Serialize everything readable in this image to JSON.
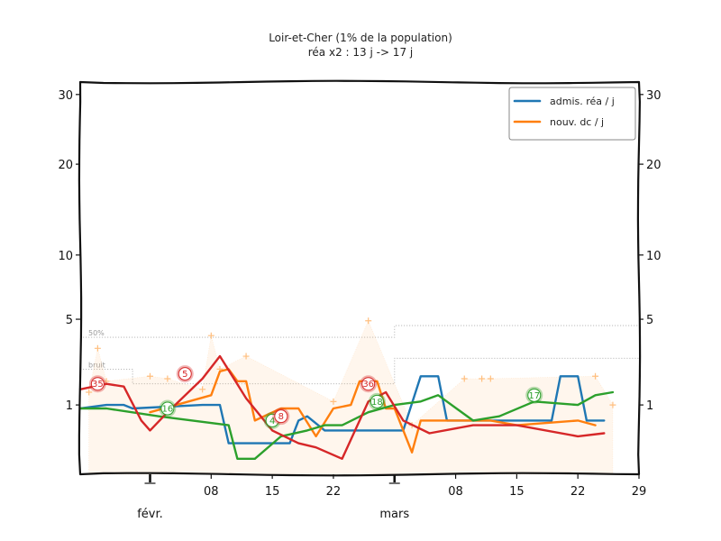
{
  "chart_data": {
    "type": "line",
    "title": "Loir-et-Cher (1% de la population)",
    "subtitle": "réa x2 : 13 j -> 17 j",
    "xlabel": "",
    "ylabel": "",
    "y_scale": "sqrt",
    "ylim": [
      0,
      32
    ],
    "xlim": [
      "2021-01-24",
      "2021-03-29"
    ],
    "y_ticks": [
      1,
      5,
      10,
      20,
      30
    ],
    "y_tick_labels": [
      "1",
      "5",
      "10",
      "20",
      "30"
    ],
    "x_ticks": [
      "2021-02-01",
      "2021-02-08",
      "2021-02-15",
      "2021-02-22",
      "2021-03-01",
      "2021-03-08",
      "2021-03-15",
      "2021-03-22",
      "2021-03-29"
    ],
    "x_tick_labels": [
      "",
      "08",
      "15",
      "22",
      "",
      "08",
      "15",
      "22",
      "29"
    ],
    "month_labels": [
      {
        "date": "2021-02-01",
        "label": "févr."
      },
      {
        "date": "2021-03-01",
        "label": "mars"
      }
    ],
    "reference_lines": [
      {
        "label": "50%",
        "points": [
          [
            "2021-01-24",
            3.9
          ],
          [
            "2021-03-01",
            3.9
          ],
          [
            "2021-03-01",
            4.6
          ],
          [
            "2021-03-29",
            4.6
          ]
        ]
      },
      {
        "label": "bruit",
        "points": [
          [
            "2021-01-24",
            2.3
          ],
          [
            "2021-01-30",
            2.3
          ],
          [
            "2021-01-30",
            1.7
          ],
          [
            "2021-03-01",
            1.7
          ],
          [
            "2021-03-01",
            2.8
          ],
          [
            "2021-03-29",
            2.8
          ]
        ]
      }
    ],
    "legend": {
      "position": "top-right"
    },
    "series": [
      {
        "name": "admis. réa / j",
        "color": "#1f77b4",
        "points": [
          [
            "2021-01-24",
            0.9
          ],
          [
            "2021-01-27",
            1.0
          ],
          [
            "2021-01-29",
            1.0
          ],
          [
            "2021-01-30",
            0.9
          ],
          [
            "2021-02-07",
            1.0
          ],
          [
            "2021-02-09",
            1.0
          ],
          [
            "2021-02-10",
            0.2
          ],
          [
            "2021-02-17",
            0.2
          ],
          [
            "2021-02-18",
            0.6
          ],
          [
            "2021-02-19",
            0.7
          ],
          [
            "2021-02-21",
            0.4
          ],
          [
            "2021-02-26",
            0.4
          ],
          [
            "2021-03-02",
            0.4
          ],
          [
            "2021-03-04",
            2.0
          ],
          [
            "2021-03-06",
            2.0
          ],
          [
            "2021-03-07",
            0.6
          ],
          [
            "2021-03-19",
            0.6
          ],
          [
            "2021-03-20",
            2.0
          ],
          [
            "2021-03-22",
            2.0
          ],
          [
            "2021-03-23",
            0.6
          ],
          [
            "2021-03-25",
            0.6
          ]
        ]
      },
      {
        "name": "nouv. dc / j",
        "color": "#ff7f0e",
        "points": [
          [
            "2021-02-01",
            0.8
          ],
          [
            "2021-02-08",
            1.3
          ],
          [
            "2021-02-09",
            2.2
          ],
          [
            "2021-02-10",
            2.3
          ],
          [
            "2021-02-11",
            1.8
          ],
          [
            "2021-02-12",
            1.8
          ],
          [
            "2021-02-13",
            0.6
          ],
          [
            "2021-02-16",
            0.9
          ],
          [
            "2021-02-18",
            0.9
          ],
          [
            "2021-02-20",
            0.3
          ],
          [
            "2021-02-22",
            0.9
          ],
          [
            "2021-02-24",
            1.0
          ],
          [
            "2021-02-25",
            1.8
          ],
          [
            "2021-02-27",
            1.8
          ],
          [
            "2021-02-28",
            0.9
          ],
          [
            "2021-03-01",
            0.9
          ],
          [
            "2021-03-03",
            0.1
          ],
          [
            "2021-03-04",
            0.6
          ],
          [
            "2021-03-12",
            0.6
          ],
          [
            "2021-03-15",
            0.5
          ],
          [
            "2021-03-22",
            0.6
          ],
          [
            "2021-03-24",
            0.5
          ]
        ]
      },
      {
        "name": "",
        "color": "#2ca02c",
        "points": [
          [
            "2021-01-24",
            0.9
          ],
          [
            "2021-01-27",
            0.9
          ],
          [
            "2021-02-02",
            0.7
          ],
          [
            "2021-02-10",
            0.5
          ],
          [
            "2021-02-11",
            0.05
          ],
          [
            "2021-02-13",
            0.05
          ],
          [
            "2021-02-16",
            0.3
          ],
          [
            "2021-02-19",
            0.4
          ],
          [
            "2021-02-21",
            0.5
          ],
          [
            "2021-02-23",
            0.5
          ],
          [
            "2021-02-26",
            0.8
          ],
          [
            "2021-03-01",
            1.0
          ],
          [
            "2021-03-04",
            1.1
          ],
          [
            "2021-03-06",
            1.3
          ],
          [
            "2021-03-10",
            0.6
          ],
          [
            "2021-03-13",
            0.7
          ],
          [
            "2021-03-17",
            1.1
          ],
          [
            "2021-03-22",
            1.0
          ],
          [
            "2021-03-24",
            1.3
          ],
          [
            "2021-03-26",
            1.4
          ]
        ]
      },
      {
        "name": "",
        "color": "#d62728",
        "points": [
          [
            "2021-01-24",
            1.5
          ],
          [
            "2021-01-27",
            1.7
          ],
          [
            "2021-01-29",
            1.6
          ],
          [
            "2021-01-31",
            0.6
          ],
          [
            "2021-02-01",
            0.4
          ],
          [
            "2021-02-03",
            0.8
          ],
          [
            "2021-02-07",
            1.9
          ],
          [
            "2021-02-09",
            2.9
          ],
          [
            "2021-02-12",
            1.2
          ],
          [
            "2021-02-15",
            0.4
          ],
          [
            "2021-02-18",
            0.2
          ],
          [
            "2021-02-20",
            0.15
          ],
          [
            "2021-02-23",
            0.05
          ],
          [
            "2021-02-26",
            1.1
          ],
          [
            "2021-02-28",
            1.4
          ],
          [
            "2021-03-02",
            0.6
          ],
          [
            "2021-03-05",
            0.35
          ],
          [
            "2021-03-10",
            0.5
          ],
          [
            "2021-03-15",
            0.5
          ],
          [
            "2021-03-22",
            0.3
          ],
          [
            "2021-03-25",
            0.35
          ]
        ]
      },
      {
        "name": "",
        "color": "#ffbf7f",
        "kind": "markers",
        "points": [
          [
            "2021-01-25",
            1.4
          ],
          [
            "2021-01-26",
            3.3
          ],
          [
            "2021-01-27",
            1.8
          ],
          [
            "2021-02-01",
            2.0
          ],
          [
            "2021-02-03",
            1.9
          ],
          [
            "2021-02-07",
            1.5
          ],
          [
            "2021-02-08",
            4.0
          ],
          [
            "2021-02-09",
            2.3
          ],
          [
            "2021-02-12",
            2.9
          ],
          [
            "2021-02-22",
            1.1
          ],
          [
            "2021-02-26",
            4.9
          ],
          [
            "2021-03-03",
            0.5
          ],
          [
            "2021-03-09",
            1.9
          ],
          [
            "2021-03-11",
            1.9
          ],
          [
            "2021-03-12",
            1.9
          ],
          [
            "2021-03-24",
            2.0
          ],
          [
            "2021-03-26",
            1.0
          ]
        ]
      }
    ],
    "badges": [
      {
        "label": "35",
        "date": "2021-01-26",
        "value": 1.7,
        "color": "#d62728"
      },
      {
        "label": "5",
        "date": "2021-02-05",
        "value": 2.1,
        "color": "#d62728"
      },
      {
        "label": "16",
        "date": "2021-02-03",
        "value": 0.9,
        "color": "#2ca02c"
      },
      {
        "label": "4",
        "date": "2021-02-15",
        "value": 0.6,
        "color": "#2ca02c"
      },
      {
        "label": "8",
        "date": "2021-02-16",
        "value": 0.7,
        "color": "#d62728"
      },
      {
        "label": "36",
        "date": "2021-02-26",
        "value": 1.7,
        "color": "#d62728"
      },
      {
        "label": "18",
        "date": "2021-02-27",
        "value": 1.1,
        "color": "#2ca02c"
      },
      {
        "label": "17",
        "date": "2021-03-17",
        "value": 1.3,
        "color": "#2ca02c"
      }
    ]
  }
}
